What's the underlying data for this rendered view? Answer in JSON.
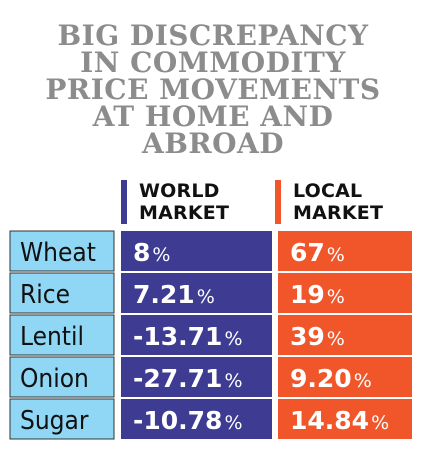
{
  "title_lines": [
    "BIG DISCREPANCY",
    "IN COMMODITY",
    "PRICE MOVEMENTS",
    "AT HOME AND",
    "ABROAD"
  ],
  "colors": {
    "world": "#3d3b92",
    "local": "#f0562a",
    "label_bg": "#8fd7f4",
    "title": "#8c8c8c"
  },
  "chart_data": {
    "type": "table",
    "title": "BIG DISCREPANCY IN COMMODITY PRICE MOVEMENTS AT HOME AND ABROAD",
    "columns": [
      {
        "key": "world",
        "line1": "WORLD",
        "line2": "MARKET"
      },
      {
        "key": "local",
        "line1": "LOCAL",
        "line2": "MARKET"
      }
    ],
    "rows": [
      {
        "label": "Wheat",
        "world": "8",
        "local": "67"
      },
      {
        "label": "Rice",
        "world": "7.21",
        "local": "19"
      },
      {
        "label": "Lentil",
        "world": "-13.71",
        "local": "39"
      },
      {
        "label": "Onion",
        "world": "-27.71",
        "local": "9.20"
      },
      {
        "label": "Sugar",
        "world": "-10.78",
        "local": "14.84"
      }
    ],
    "unit": "%"
  }
}
